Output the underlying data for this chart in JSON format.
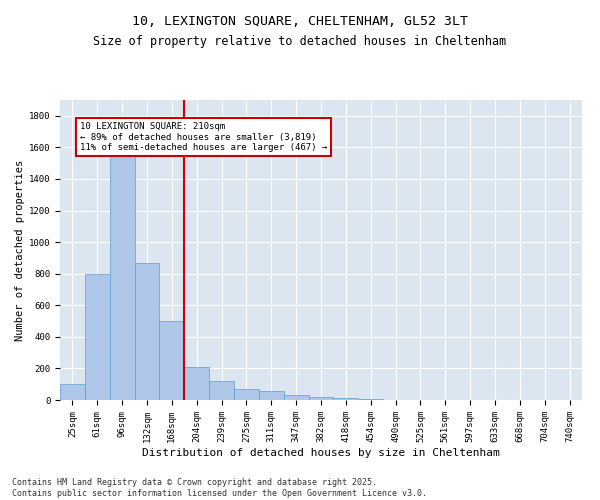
{
  "title1": "10, LEXINGTON SQUARE, CHELTENHAM, GL52 3LT",
  "title2": "Size of property relative to detached houses in Cheltenham",
  "xlabel": "Distribution of detached houses by size in Cheltenham",
  "ylabel": "Number of detached properties",
  "categories": [
    "25sqm",
    "61sqm",
    "96sqm",
    "132sqm",
    "168sqm",
    "204sqm",
    "239sqm",
    "275sqm",
    "311sqm",
    "347sqm",
    "382sqm",
    "418sqm",
    "454sqm",
    "490sqm",
    "525sqm",
    "561sqm",
    "597sqm",
    "633sqm",
    "668sqm",
    "704sqm",
    "740sqm"
  ],
  "values": [
    100,
    800,
    1650,
    870,
    500,
    210,
    120,
    70,
    55,
    30,
    20,
    15,
    5,
    3,
    2,
    2,
    2,
    1,
    1,
    1,
    1
  ],
  "bar_color": "#aec6e8",
  "bar_edge_color": "#5a9fd4",
  "vline_color": "#cc0000",
  "annotation_text": "10 LEXINGTON SQUARE: 210sqm\n← 89% of detached houses are smaller (3,819)\n11% of semi-detached houses are larger (467) →",
  "annotation_box_color": "#cc0000",
  "ylim": [
    0,
    1900
  ],
  "yticks": [
    0,
    200,
    400,
    600,
    800,
    1000,
    1200,
    1400,
    1600,
    1800
  ],
  "background_color": "#dce6f0",
  "footer": "Contains HM Land Registry data © Crown copyright and database right 2025.\nContains public sector information licensed under the Open Government Licence v3.0.",
  "title1_fontsize": 9.5,
  "title2_fontsize": 8.5,
  "xlabel_fontsize": 8,
  "ylabel_fontsize": 7.5,
  "tick_fontsize": 6.5,
  "footer_fontsize": 6
}
